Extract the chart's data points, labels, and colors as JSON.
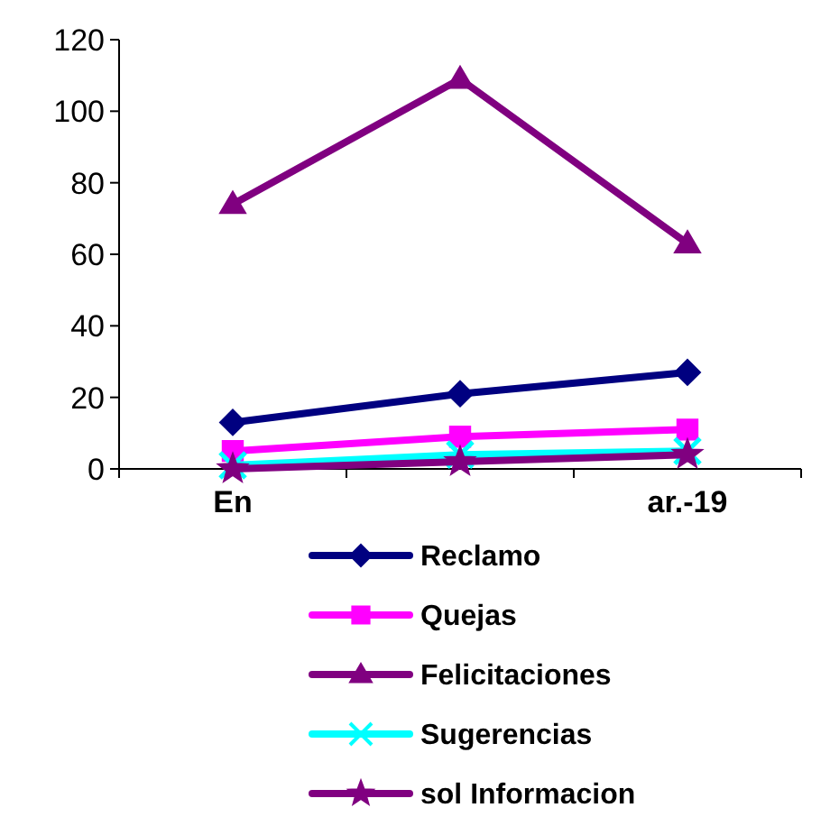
{
  "chart_data": {
    "type": "line",
    "categories": [
      "En",
      null,
      "ar.-19"
    ],
    "ylim": [
      0,
      120
    ],
    "yticks": [
      0,
      20,
      40,
      60,
      80,
      100,
      120
    ],
    "grid": false,
    "legend": "bottom",
    "line_style": "solid",
    "series": [
      {
        "name": "Reclamo",
        "color": "#000080",
        "marker": "diamond",
        "values": [
          13,
          21,
          27
        ]
      },
      {
        "name": "Quejas",
        "color": "#ff00ff",
        "marker": "square",
        "values": [
          5,
          9,
          11
        ]
      },
      {
        "name": "Felicitaciones",
        "color": "#800080",
        "marker": "triangle",
        "values": [
          74,
          109,
          63
        ]
      },
      {
        "name": "Sugerencias",
        "color": "#00ffff",
        "marker": "cross",
        "values": [
          1,
          4,
          5
        ]
      },
      {
        "name": "sol Informacion",
        "color": "#800080",
        "marker": "star",
        "values": [
          0,
          2,
          4
        ]
      }
    ]
  }
}
